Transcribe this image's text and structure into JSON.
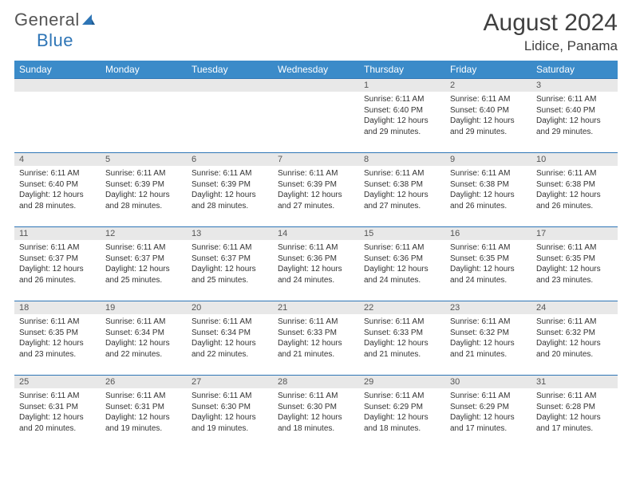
{
  "logo": {
    "general": "General",
    "blue": "Blue"
  },
  "title": "August 2024",
  "location": "Lidice, Panama",
  "header_color": "#3b8bc9",
  "border_color": "#2e75b6",
  "daynum_bg": "#e8e8e8",
  "days": [
    "Sunday",
    "Monday",
    "Tuesday",
    "Wednesday",
    "Thursday",
    "Friday",
    "Saturday"
  ],
  "weeks": [
    [
      null,
      null,
      null,
      null,
      {
        "n": "1",
        "sr": "6:11 AM",
        "ss": "6:40 PM",
        "dl": "12 hours and 29 minutes."
      },
      {
        "n": "2",
        "sr": "6:11 AM",
        "ss": "6:40 PM",
        "dl": "12 hours and 29 minutes."
      },
      {
        "n": "3",
        "sr": "6:11 AM",
        "ss": "6:40 PM",
        "dl": "12 hours and 29 minutes."
      }
    ],
    [
      {
        "n": "4",
        "sr": "6:11 AM",
        "ss": "6:40 PM",
        "dl": "12 hours and 28 minutes."
      },
      {
        "n": "5",
        "sr": "6:11 AM",
        "ss": "6:39 PM",
        "dl": "12 hours and 28 minutes."
      },
      {
        "n": "6",
        "sr": "6:11 AM",
        "ss": "6:39 PM",
        "dl": "12 hours and 28 minutes."
      },
      {
        "n": "7",
        "sr": "6:11 AM",
        "ss": "6:39 PM",
        "dl": "12 hours and 27 minutes."
      },
      {
        "n": "8",
        "sr": "6:11 AM",
        "ss": "6:38 PM",
        "dl": "12 hours and 27 minutes."
      },
      {
        "n": "9",
        "sr": "6:11 AM",
        "ss": "6:38 PM",
        "dl": "12 hours and 26 minutes."
      },
      {
        "n": "10",
        "sr": "6:11 AM",
        "ss": "6:38 PM",
        "dl": "12 hours and 26 minutes."
      }
    ],
    [
      {
        "n": "11",
        "sr": "6:11 AM",
        "ss": "6:37 PM",
        "dl": "12 hours and 26 minutes."
      },
      {
        "n": "12",
        "sr": "6:11 AM",
        "ss": "6:37 PM",
        "dl": "12 hours and 25 minutes."
      },
      {
        "n": "13",
        "sr": "6:11 AM",
        "ss": "6:37 PM",
        "dl": "12 hours and 25 minutes."
      },
      {
        "n": "14",
        "sr": "6:11 AM",
        "ss": "6:36 PM",
        "dl": "12 hours and 24 minutes."
      },
      {
        "n": "15",
        "sr": "6:11 AM",
        "ss": "6:36 PM",
        "dl": "12 hours and 24 minutes."
      },
      {
        "n": "16",
        "sr": "6:11 AM",
        "ss": "6:35 PM",
        "dl": "12 hours and 24 minutes."
      },
      {
        "n": "17",
        "sr": "6:11 AM",
        "ss": "6:35 PM",
        "dl": "12 hours and 23 minutes."
      }
    ],
    [
      {
        "n": "18",
        "sr": "6:11 AM",
        "ss": "6:35 PM",
        "dl": "12 hours and 23 minutes."
      },
      {
        "n": "19",
        "sr": "6:11 AM",
        "ss": "6:34 PM",
        "dl": "12 hours and 22 minutes."
      },
      {
        "n": "20",
        "sr": "6:11 AM",
        "ss": "6:34 PM",
        "dl": "12 hours and 22 minutes."
      },
      {
        "n": "21",
        "sr": "6:11 AM",
        "ss": "6:33 PM",
        "dl": "12 hours and 21 minutes."
      },
      {
        "n": "22",
        "sr": "6:11 AM",
        "ss": "6:33 PM",
        "dl": "12 hours and 21 minutes."
      },
      {
        "n": "23",
        "sr": "6:11 AM",
        "ss": "6:32 PM",
        "dl": "12 hours and 21 minutes."
      },
      {
        "n": "24",
        "sr": "6:11 AM",
        "ss": "6:32 PM",
        "dl": "12 hours and 20 minutes."
      }
    ],
    [
      {
        "n": "25",
        "sr": "6:11 AM",
        "ss": "6:31 PM",
        "dl": "12 hours and 20 minutes."
      },
      {
        "n": "26",
        "sr": "6:11 AM",
        "ss": "6:31 PM",
        "dl": "12 hours and 19 minutes."
      },
      {
        "n": "27",
        "sr": "6:11 AM",
        "ss": "6:30 PM",
        "dl": "12 hours and 19 minutes."
      },
      {
        "n": "28",
        "sr": "6:11 AM",
        "ss": "6:30 PM",
        "dl": "12 hours and 18 minutes."
      },
      {
        "n": "29",
        "sr": "6:11 AM",
        "ss": "6:29 PM",
        "dl": "12 hours and 18 minutes."
      },
      {
        "n": "30",
        "sr": "6:11 AM",
        "ss": "6:29 PM",
        "dl": "12 hours and 17 minutes."
      },
      {
        "n": "31",
        "sr": "6:11 AM",
        "ss": "6:28 PM",
        "dl": "12 hours and 17 minutes."
      }
    ]
  ]
}
